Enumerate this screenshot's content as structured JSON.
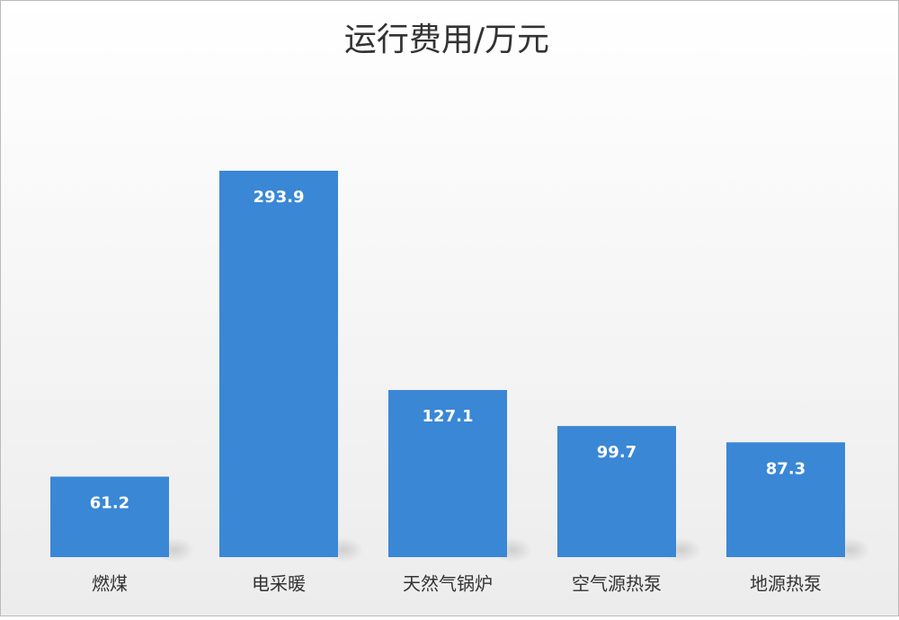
{
  "chart_data": {
    "type": "bar",
    "title": "运行费用/万元",
    "categories": [
      "燃煤",
      "电采暖",
      "天然气锅炉",
      "空气源热泵",
      "地源热泵"
    ],
    "values": [
      61.2,
      293.9,
      127.1,
      99.7,
      87.3
    ],
    "color": "#3a87d6"
  }
}
